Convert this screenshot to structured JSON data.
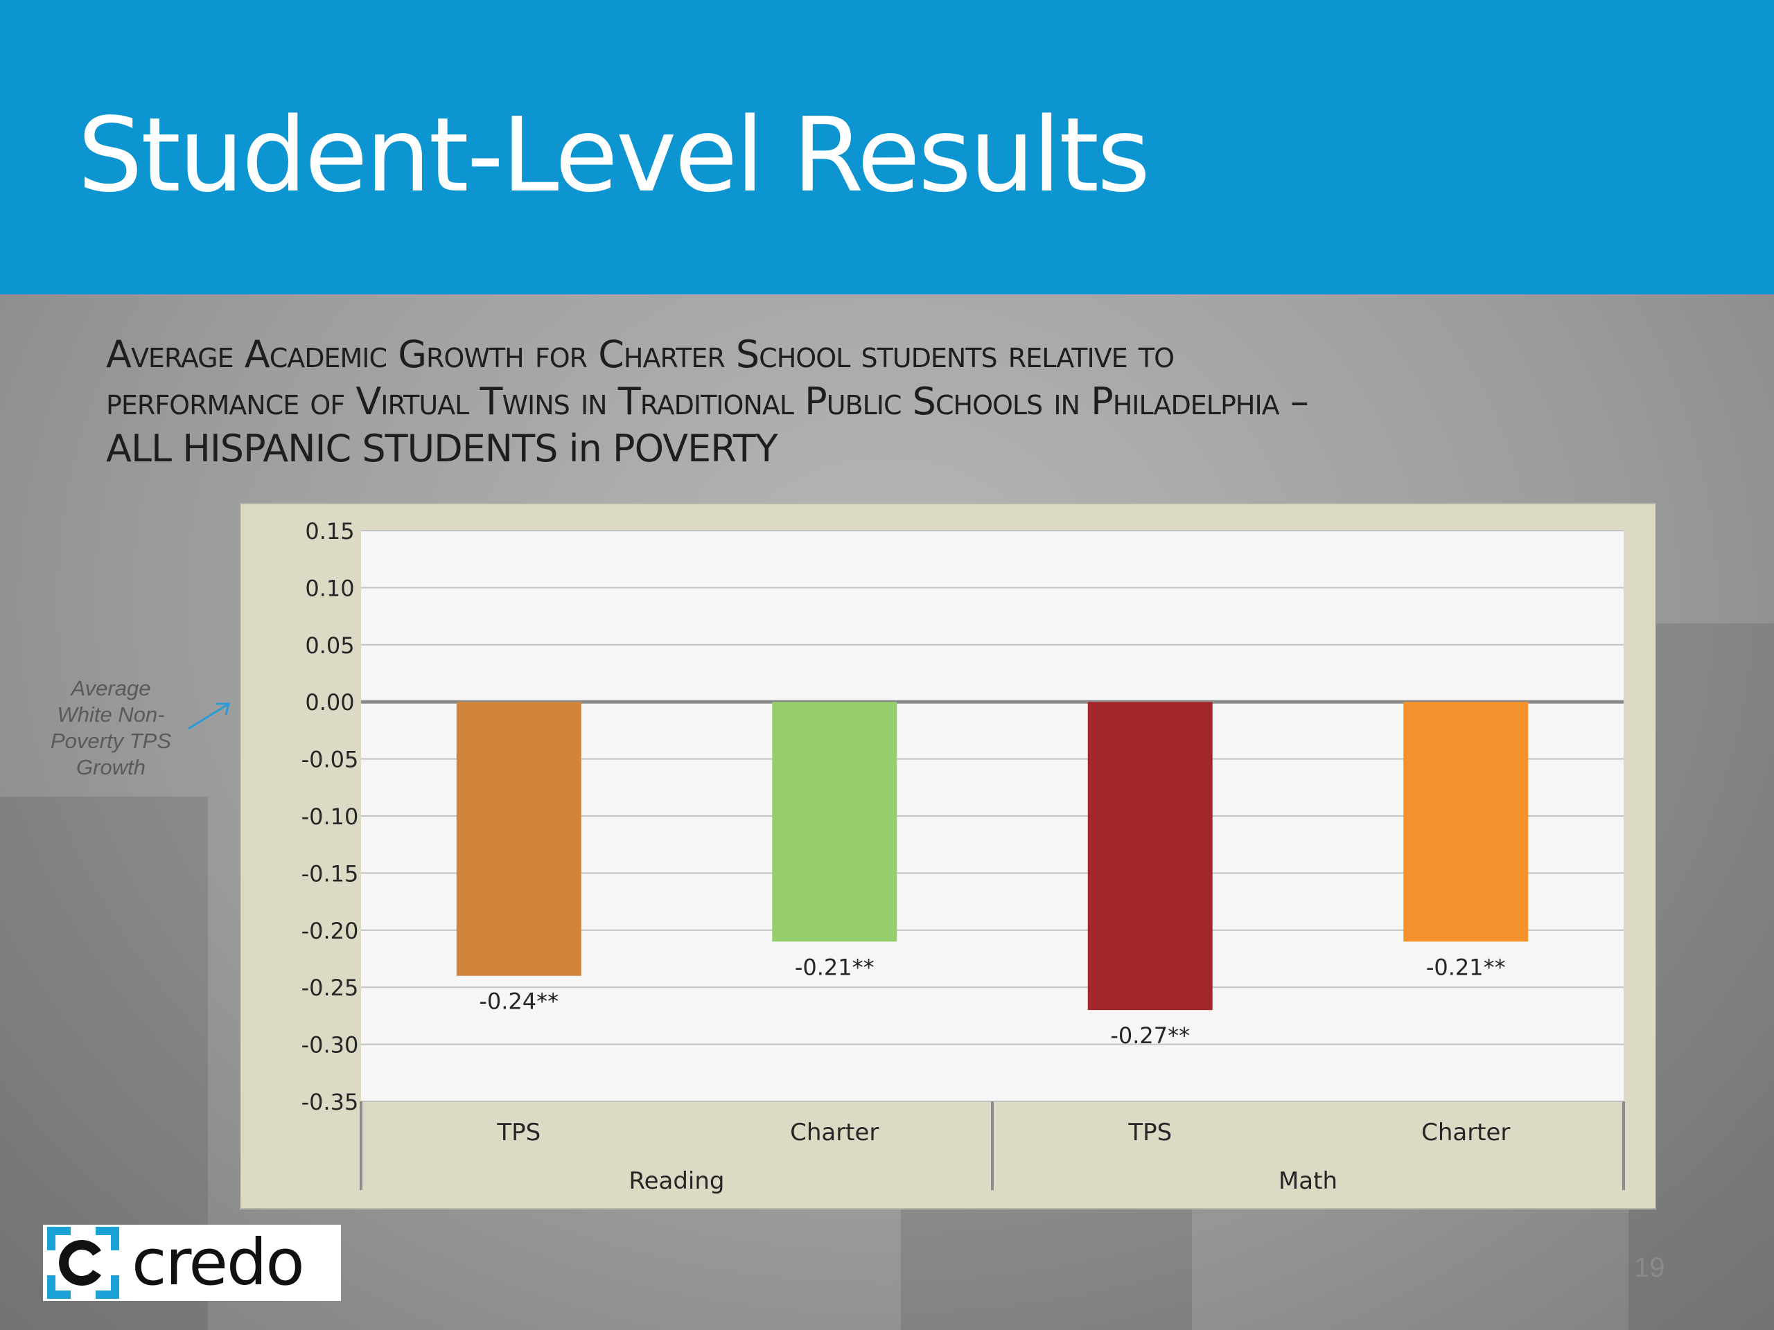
{
  "header": {
    "title": "Student-Level Results"
  },
  "subtitle": {
    "line1": "Average Academic Growth for Charter School students relative to",
    "line2": "performance of Virtual Twins in Traditional Public Schools in Philadelphia –",
    "line3": "ALL HISPANIC STUDENTS in POVERTY"
  },
  "annotation": {
    "text": "Average White Non-Poverty TPS Growth"
  },
  "chart_data": {
    "type": "bar",
    "title": "",
    "xlabel": "",
    "ylabel": "",
    "ylim": [
      -0.35,
      0.15
    ],
    "yticks": [
      0.15,
      0.1,
      0.05,
      0.0,
      -0.05,
      -0.1,
      -0.15,
      -0.2,
      -0.25,
      -0.3,
      -0.35
    ],
    "grid": true,
    "categories": [
      "TPS",
      "Charter",
      "TPS",
      "Charter"
    ],
    "groups": [
      {
        "name": "Reading",
        "categories": [
          "TPS",
          "Charter"
        ]
      },
      {
        "name": "Math",
        "categories": [
          "TPS",
          "Charter"
        ]
      }
    ],
    "values": [
      -0.24,
      -0.21,
      -0.27,
      -0.21
    ],
    "data_labels": [
      "-0.24**",
      "-0.21**",
      "-0.27**",
      "-0.21**"
    ],
    "colors": [
      "#d0843c",
      "#96ce6b",
      "#a3282b",
      "#f6922e"
    ]
  },
  "logo": {
    "text": "credo"
  },
  "page": {
    "number": "19"
  }
}
